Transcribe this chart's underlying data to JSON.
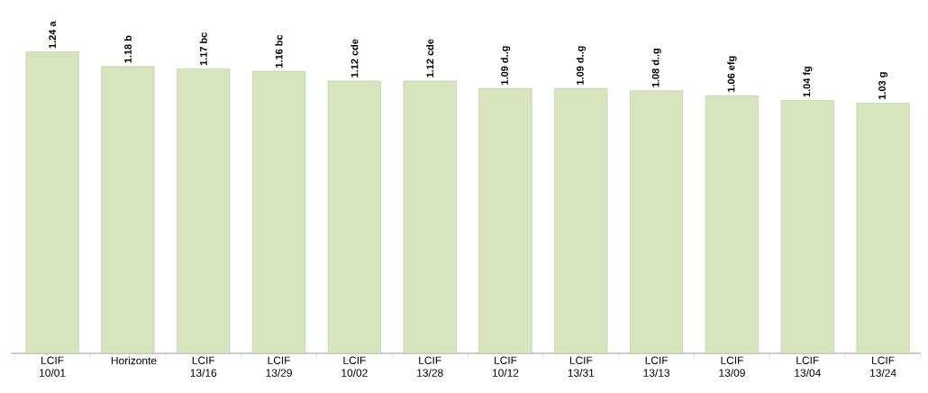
{
  "chart_data": {
    "type": "bar",
    "categories": [
      "LCIF 10/01",
      "Horizonte",
      "LCIF 13/16",
      "LCIF 13/29",
      "LCIF 10/02",
      "LCIF 13/28",
      "LCIF 10/12",
      "LCIF 13/31",
      "LCIF 13/13",
      "LCIF 13/09",
      "LCIF 13/04",
      "LCIF 13/24"
    ],
    "values": [
      1.24,
      1.18,
      1.17,
      1.16,
      1.12,
      1.12,
      1.09,
      1.09,
      1.08,
      1.06,
      1.04,
      1.03
    ],
    "value_labels": [
      "1.24 a",
      "1.18 b",
      "1.17 bc",
      "1.16 bc",
      "1.12 cde",
      "1.12 cde",
      "1.09 d..g",
      "1.09 d..g",
      "1.08 d..g",
      "1.06 efg",
      "1.04 fg",
      "1.03 g"
    ],
    "color": "#d7e4bd",
    "tick_labels": "x"
  }
}
